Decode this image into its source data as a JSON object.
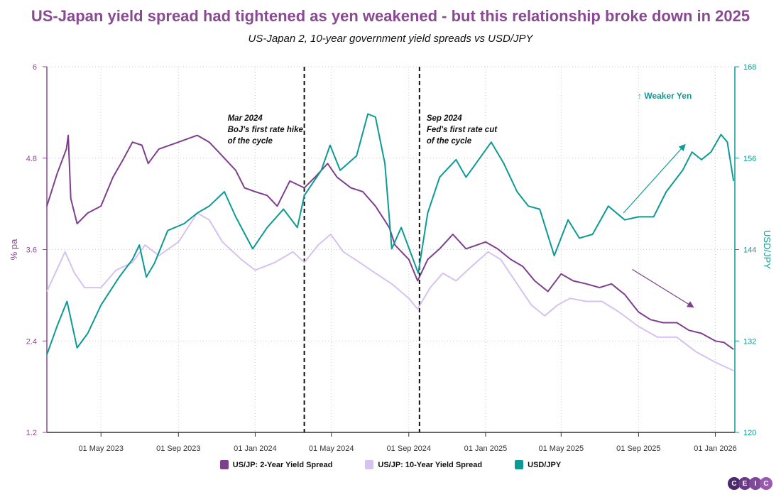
{
  "chart_data": {
    "type": "line",
    "title": "US-Japan yield spread had tightened as yen weakened - but this relationship broke down in 2025",
    "subtitle": "US-Japan 2, 10-year government yield spreads vs USD/JPY",
    "ylabel_left": "% pa",
    "ylabel_right": "USD/JPY",
    "ylim_left": [
      1.2,
      6
    ],
    "ylim_right": [
      120,
      168
    ],
    "yticks_left": [
      "1.2",
      "2.4",
      "3.6",
      "4.8",
      "6"
    ],
    "yticks_right": [
      "120",
      "132",
      "144",
      "156",
      "168"
    ],
    "xlim": [
      "2023-02-04",
      "2026-02-01"
    ],
    "xticks": [
      {
        "date": "2023-05-01",
        "label": "01 May 2023"
      },
      {
        "date": "2023-09-01",
        "label": "01 Sep 2023"
      },
      {
        "date": "2024-01-01",
        "label": "01 Jan 2024"
      },
      {
        "date": "2024-05-01",
        "label": "01 May 2024"
      },
      {
        "date": "2024-09-01",
        "label": "01 Sep 2024"
      },
      {
        "date": "2025-01-01",
        "label": "01 Jan 2025"
      },
      {
        "date": "2025-05-01",
        "label": "01 May 2025"
      },
      {
        "date": "2025-09-01",
        "label": "01 Sep 2025"
      },
      {
        "date": "2026-01-01",
        "label": "01 Jan 2026"
      }
    ],
    "grid": true,
    "legend_position": "bottom",
    "series": [
      {
        "name": "US/JP: 2-Year Yield Spread",
        "axis": "left",
        "color": "#7e3f8c",
        "points": [
          [
            "2023-02-04",
            4.17
          ],
          [
            "2023-02-20",
            4.59
          ],
          [
            "2023-03-07",
            4.92
          ],
          [
            "2023-03-10",
            5.1
          ],
          [
            "2023-03-14",
            4.27
          ],
          [
            "2023-03-24",
            3.94
          ],
          [
            "2023-04-10",
            4.08
          ],
          [
            "2023-05-01",
            4.17
          ],
          [
            "2023-05-20",
            4.55
          ],
          [
            "2023-06-05",
            4.78
          ],
          [
            "2023-06-20",
            5.01
          ],
          [
            "2023-07-05",
            4.97
          ],
          [
            "2023-07-15",
            4.73
          ],
          [
            "2023-08-01",
            4.92
          ],
          [
            "2023-09-01",
            5.01
          ],
          [
            "2023-10-01",
            5.1
          ],
          [
            "2023-10-20",
            5.01
          ],
          [
            "2023-11-05",
            4.87
          ],
          [
            "2023-12-01",
            4.64
          ],
          [
            "2023-12-15",
            4.41
          ],
          [
            "2024-01-01",
            4.36
          ],
          [
            "2024-01-20",
            4.31
          ],
          [
            "2024-02-05",
            4.17
          ],
          [
            "2024-02-25",
            4.5
          ],
          [
            "2024-03-19",
            4.41
          ],
          [
            "2024-04-05",
            4.55
          ],
          [
            "2024-04-25",
            4.73
          ],
          [
            "2024-05-10",
            4.55
          ],
          [
            "2024-06-01",
            4.41
          ],
          [
            "2024-06-20",
            4.36
          ],
          [
            "2024-07-10",
            4.17
          ],
          [
            "2024-08-01",
            3.89
          ],
          [
            "2024-08-10",
            3.66
          ],
          [
            "2024-09-01",
            3.47
          ],
          [
            "2024-09-15",
            3.19
          ],
          [
            "2024-10-01",
            3.47
          ],
          [
            "2024-10-20",
            3.61
          ],
          [
            "2024-11-10",
            3.8
          ],
          [
            "2024-12-01",
            3.61
          ],
          [
            "2025-01-01",
            3.7
          ],
          [
            "2025-01-20",
            3.61
          ],
          [
            "2025-02-10",
            3.47
          ],
          [
            "2025-03-01",
            3.38
          ],
          [
            "2025-03-20",
            3.19
          ],
          [
            "2025-04-10",
            3.05
          ],
          [
            "2025-05-01",
            3.28
          ],
          [
            "2025-05-20",
            3.19
          ],
          [
            "2025-06-10",
            3.15
          ],
          [
            "2025-07-01",
            3.1
          ],
          [
            "2025-07-20",
            3.15
          ],
          [
            "2025-08-10",
            3.01
          ],
          [
            "2025-09-01",
            2.78
          ],
          [
            "2025-09-20",
            2.68
          ],
          [
            "2025-10-10",
            2.64
          ],
          [
            "2025-11-01",
            2.64
          ],
          [
            "2025-11-20",
            2.54
          ],
          [
            "2025-12-10",
            2.5
          ],
          [
            "2026-01-01",
            2.4
          ],
          [
            "2026-01-15",
            2.38
          ],
          [
            "2026-01-30",
            2.29
          ]
        ]
      },
      {
        "name": "US/JP: 10-Year Yield Spread",
        "axis": "left",
        "color": "#d5c2f0",
        "points": [
          [
            "2023-02-04",
            3.05
          ],
          [
            "2023-03-05",
            3.57
          ],
          [
            "2023-03-20",
            3.29
          ],
          [
            "2023-04-05",
            3.1
          ],
          [
            "2023-05-01",
            3.1
          ],
          [
            "2023-05-25",
            3.33
          ],
          [
            "2023-06-20",
            3.43
          ],
          [
            "2023-07-10",
            3.66
          ],
          [
            "2023-08-01",
            3.52
          ],
          [
            "2023-09-01",
            3.7
          ],
          [
            "2023-10-01",
            4.08
          ],
          [
            "2023-10-20",
            3.99
          ],
          [
            "2023-11-10",
            3.7
          ],
          [
            "2023-12-10",
            3.47
          ],
          [
            "2024-01-01",
            3.33
          ],
          [
            "2024-02-01",
            3.43
          ],
          [
            "2024-03-01",
            3.57
          ],
          [
            "2024-03-19",
            3.43
          ],
          [
            "2024-04-10",
            3.66
          ],
          [
            "2024-04-30",
            3.8
          ],
          [
            "2024-05-20",
            3.57
          ],
          [
            "2024-06-15",
            3.43
          ],
          [
            "2024-07-10",
            3.29
          ],
          [
            "2024-08-05",
            3.15
          ],
          [
            "2024-09-01",
            2.96
          ],
          [
            "2024-09-15",
            2.82
          ],
          [
            "2024-10-05",
            3.1
          ],
          [
            "2024-10-25",
            3.29
          ],
          [
            "2024-11-15",
            3.19
          ],
          [
            "2024-12-10",
            3.38
          ],
          [
            "2025-01-05",
            3.57
          ],
          [
            "2025-01-25",
            3.47
          ],
          [
            "2025-02-20",
            3.15
          ],
          [
            "2025-03-15",
            2.87
          ],
          [
            "2025-04-05",
            2.73
          ],
          [
            "2025-04-25",
            2.87
          ],
          [
            "2025-05-15",
            2.96
          ],
          [
            "2025-06-10",
            2.92
          ],
          [
            "2025-07-05",
            2.92
          ],
          [
            "2025-08-01",
            2.78
          ],
          [
            "2025-09-01",
            2.59
          ],
          [
            "2025-10-01",
            2.45
          ],
          [
            "2025-11-01",
            2.45
          ],
          [
            "2025-12-01",
            2.26
          ],
          [
            "2026-01-01",
            2.12
          ],
          [
            "2026-01-30",
            2.01
          ]
        ]
      },
      {
        "name": "USD/JPY",
        "axis": "right",
        "color": "#0e9a94",
        "points": [
          [
            "2023-02-04",
            130.2
          ],
          [
            "2023-02-20",
            133.9
          ],
          [
            "2023-03-08",
            137.2
          ],
          [
            "2023-03-24",
            131.1
          ],
          [
            "2023-04-10",
            133.0
          ],
          [
            "2023-05-01",
            136.7
          ],
          [
            "2023-05-30",
            140.4
          ],
          [
            "2023-06-20",
            142.7
          ],
          [
            "2023-07-01",
            144.6
          ],
          [
            "2023-07-12",
            140.4
          ],
          [
            "2023-07-25",
            142.2
          ],
          [
            "2023-08-15",
            146.5
          ],
          [
            "2023-09-10",
            147.4
          ],
          [
            "2023-10-01",
            148.8
          ],
          [
            "2023-10-20",
            149.7
          ],
          [
            "2023-11-13",
            151.6
          ],
          [
            "2023-12-01",
            148.3
          ],
          [
            "2023-12-28",
            144.1
          ],
          [
            "2024-01-20",
            146.9
          ],
          [
            "2024-02-15",
            149.3
          ],
          [
            "2024-03-08",
            146.9
          ],
          [
            "2024-03-19",
            151.1
          ],
          [
            "2024-04-15",
            154.4
          ],
          [
            "2024-04-29",
            157.7
          ],
          [
            "2024-05-15",
            154.4
          ],
          [
            "2024-06-10",
            156.3
          ],
          [
            "2024-06-28",
            161.8
          ],
          [
            "2024-07-10",
            161.4
          ],
          [
            "2024-07-25",
            155.3
          ],
          [
            "2024-08-05",
            144.1
          ],
          [
            "2024-08-20",
            146.9
          ],
          [
            "2024-09-16",
            140.9
          ],
          [
            "2024-10-01",
            148.8
          ],
          [
            "2024-10-20",
            153.5
          ],
          [
            "2024-11-15",
            155.8
          ],
          [
            "2024-12-01",
            153.5
          ],
          [
            "2025-01-10",
            158.1
          ],
          [
            "2025-01-30",
            155.3
          ],
          [
            "2025-02-20",
            151.6
          ],
          [
            "2025-03-10",
            149.7
          ],
          [
            "2025-03-28",
            149.3
          ],
          [
            "2025-04-20",
            143.2
          ],
          [
            "2025-05-12",
            147.9
          ],
          [
            "2025-05-30",
            145.5
          ],
          [
            "2025-06-20",
            146.0
          ],
          [
            "2025-07-15",
            149.7
          ],
          [
            "2025-08-10",
            147.9
          ],
          [
            "2025-09-01",
            148.3
          ],
          [
            "2025-09-25",
            148.3
          ],
          [
            "2025-10-15",
            151.6
          ],
          [
            "2025-11-10",
            154.4
          ],
          [
            "2025-11-25",
            156.8
          ],
          [
            "2025-12-10",
            155.8
          ],
          [
            "2025-12-25",
            156.8
          ],
          [
            "2026-01-10",
            159.1
          ],
          [
            "2026-01-20",
            158.1
          ],
          [
            "2026-01-30",
            153.0
          ]
        ]
      }
    ],
    "annotations": {
      "events": [
        {
          "date": "2024-03-19",
          "lines": [
            "Mar 2024",
            "BoJ's first rate hike",
            "of the cycle"
          ]
        },
        {
          "date": "2024-09-18",
          "lines": [
            "Sep 2024",
            "Fed's first rate cut",
            "of the cycle"
          ]
        }
      ],
      "weaker_yen": "↑ Weaker Yen",
      "arrows": [
        {
          "axis": "right",
          "color": "#0e9a94",
          "from": [
            "2025-08-08",
            148.8
          ],
          "to": [
            "2025-11-13",
            157.7
          ]
        },
        {
          "axis": "left",
          "color": "#7e3f8c",
          "from": [
            "2025-08-22",
            3.34
          ],
          "to": [
            "2025-11-26",
            2.85
          ]
        }
      ]
    }
  },
  "logo": [
    "C",
    "E",
    "I",
    "C"
  ]
}
